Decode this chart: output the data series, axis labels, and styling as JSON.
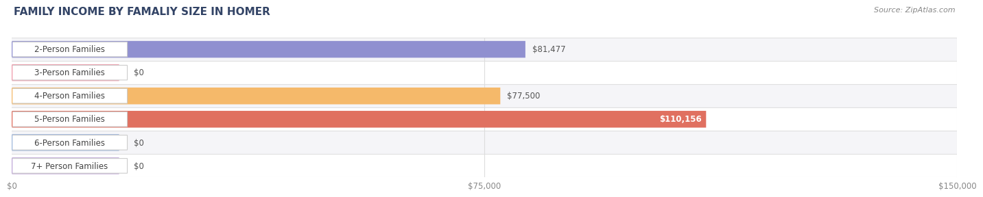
{
  "title": "FAMILY INCOME BY FAMALIY SIZE IN HOMER",
  "source": "Source: ZipAtlas.com",
  "categories": [
    "2-Person Families",
    "3-Person Families",
    "4-Person Families",
    "5-Person Families",
    "6-Person Families",
    "7+ Person Families"
  ],
  "values": [
    81477,
    0,
    77500,
    110156,
    0,
    0
  ],
  "bar_colors": [
    "#9090d0",
    "#f09aaa",
    "#f5b96a",
    "#e07060",
    "#a0b8dc",
    "#c0a8d8"
  ],
  "row_bg_colors": [
    "#f5f5f8",
    "#ffffff",
    "#f5f5f8",
    "#ffffff",
    "#f5f5f8",
    "#ffffff"
  ],
  "label_text_color": "#444444",
  "value_label_inside_color": "#ffffff",
  "value_label_outside_color": "#555555",
  "xlim": [
    0,
    150000
  ],
  "xticks": [
    0,
    75000,
    150000
  ],
  "xtick_labels": [
    "$0",
    "$75,000",
    "$150,000"
  ],
  "bar_height": 0.72,
  "title_fontsize": 11,
  "label_fontsize": 8.5,
  "tick_fontsize": 8.5,
  "source_fontsize": 8,
  "background_color": "#ffffff",
  "stub_values": [
    0,
    17000,
    0,
    0,
    17000,
    17000
  ],
  "gridline_color": "#dddddd",
  "separator_color": "#e0e0e0"
}
